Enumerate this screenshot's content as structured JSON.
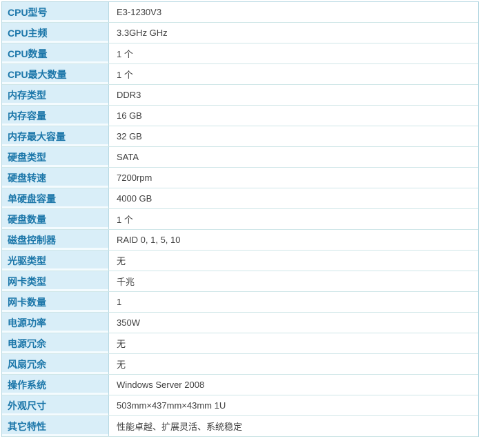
{
  "table": {
    "rows": [
      {
        "label": "CPU型号",
        "value": "E3-1230V3"
      },
      {
        "label": "CPU主频",
        "value": "3.3GHz GHz"
      },
      {
        "label": "CPU数量",
        "value": "1 个"
      },
      {
        "label": "CPU最大数量",
        "value": "1 个"
      },
      {
        "label": "内存类型",
        "value": "DDR3"
      },
      {
        "label": "内存容量",
        "value": "16 GB"
      },
      {
        "label": "内存最大容量",
        "value": "32 GB"
      },
      {
        "label": "硬盘类型",
        "value": "SATA"
      },
      {
        "label": "硬盘转速",
        "value": "7200rpm"
      },
      {
        "label": "单硬盘容量",
        "value": "4000 GB"
      },
      {
        "label": "硬盘数量",
        "value": "1 个"
      },
      {
        "label": "磁盘控制器",
        "value": "RAID 0, 1, 5, 10"
      },
      {
        "label": "光驱类型",
        "value": "无"
      },
      {
        "label": "网卡类型",
        "value": "千兆"
      },
      {
        "label": "网卡数量",
        "value": "1"
      },
      {
        "label": "电源功率",
        "value": "350W"
      },
      {
        "label": "电源冗余",
        "value": "无"
      },
      {
        "label": "风扇冗余",
        "value": "无"
      },
      {
        "label": "操作系统",
        "value": "Windows Server 2008"
      },
      {
        "label": "外观尺寸",
        "value": "503mm×437mm×43mm 1U"
      },
      {
        "label": "其它特性",
        "value": "性能卓越、扩展灵活、系统稳定"
      }
    ],
    "colors": {
      "label_bg": "#d9eef8",
      "label_text": "#1b76a9",
      "value_text": "#404040",
      "border_horizontal": "#cfe6e8",
      "border_vertical": "#b7d9e3"
    }
  }
}
